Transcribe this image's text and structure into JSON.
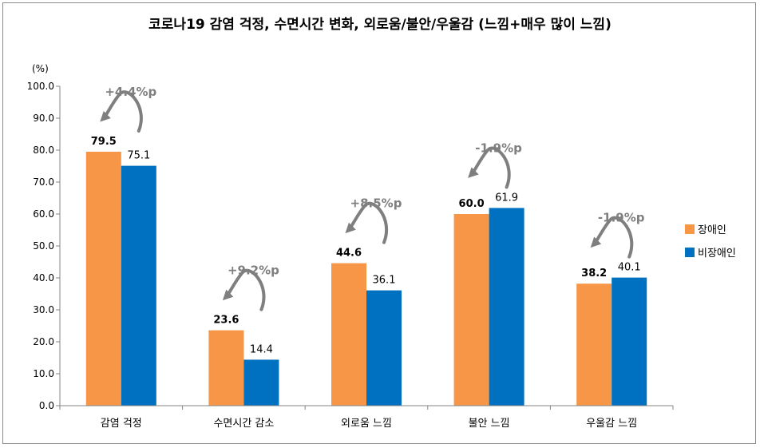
{
  "chart_data": {
    "type": "bar",
    "title": "코로나19 감염 걱정, 수면시간 변화, 외로움/불안/우울감  (느낌+매우 많이 느낌)",
    "ylabel": "(%)",
    "ylim": [
      0,
      100
    ],
    "yticks": [
      "0.0",
      "10.0",
      "20.0",
      "30.0",
      "40.0",
      "50.0",
      "60.0",
      "70.0",
      "80.0",
      "90.0",
      "100.0"
    ],
    "grid": false,
    "legend_position": "right",
    "categories": [
      "감염 걱정",
      "수면시간 감소",
      "외로움 느낌",
      "불안 느낌",
      "우울감 느낌"
    ],
    "series": [
      {
        "name": "장애인",
        "color": "#f79646",
        "values": [
          79.5,
          23.6,
          44.6,
          60.0,
          38.2
        ],
        "labels": [
          "79.5",
          "23.6",
          "44.6",
          "60.0",
          "38.2"
        ]
      },
      {
        "name": "비장애인",
        "color": "#0070c0",
        "values": [
          75.1,
          14.4,
          36.1,
          61.9,
          40.1
        ],
        "labels": [
          "75.1",
          "14.4",
          "36.1",
          "61.9",
          "40.1"
        ]
      }
    ],
    "annotations": [
      "+4.4%p",
      "+9.2%p",
      "+8.5%p",
      "-1.9%p",
      "-1.9%p"
    ],
    "annotation_color": "#7f7f7f"
  }
}
